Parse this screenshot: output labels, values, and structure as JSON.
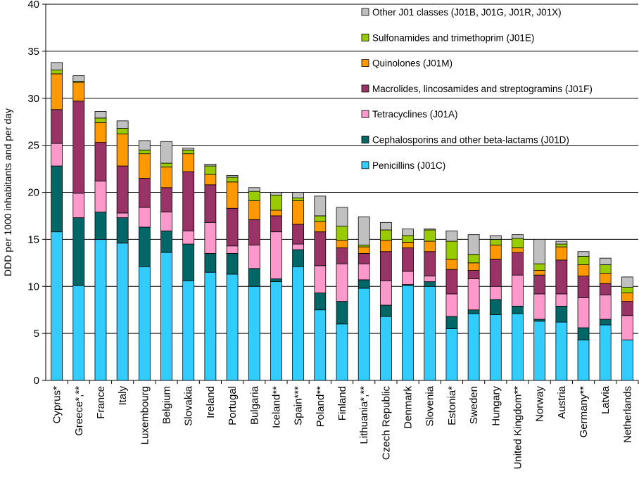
{
  "chart_data": {
    "type": "bar",
    "stacked": true,
    "title": "",
    "xlabel": "",
    "ylabel": "DDD per 1000 inhabitants and per day",
    "ylim": [
      0,
      40
    ],
    "yticks": [
      "0",
      "5",
      "10",
      "15",
      "20",
      "25",
      "30",
      "35",
      "40"
    ],
    "grid": "horizontal",
    "legend_position": "top-right",
    "categories": [
      "Cyprus*",
      "Greece*,**",
      "France",
      "Italy",
      "Luxembourg",
      "Belgium",
      "Slovakia",
      "Ireland",
      "Portugal",
      "Bulgaria",
      "Iceland**",
      "Spain***",
      "Poland**",
      "Finland",
      "Lithuania*,**",
      "Czech Republic",
      "Denmark",
      "Slovenia",
      "Estonia*",
      "Sweden",
      "Hungary",
      "United Kingdom**",
      "Norway",
      "Austria",
      "Germany**",
      "Latvia",
      "Netherlands"
    ],
    "series": [
      {
        "name": "Penicillins (J01C)",
        "color": "#33CCFF",
        "values": [
          15.8,
          10.1,
          15.0,
          14.6,
          12.1,
          13.6,
          10.6,
          11.5,
          11.3,
          10.0,
          10.5,
          12.1,
          7.5,
          6.0,
          9.8,
          6.8,
          10.1,
          10.0,
          5.5,
          7.1,
          7.0,
          7.1,
          6.3,
          6.2,
          4.3,
          5.9,
          4.3
        ]
      },
      {
        "name": "Cephalosporins and other beta-lactams (J01D)",
        "color": "#006666",
        "values": [
          7.0,
          7.2,
          2.9,
          2.7,
          4.2,
          2.3,
          3.9,
          2.0,
          2.2,
          1.9,
          0.3,
          1.8,
          1.8,
          2.4,
          0.9,
          1.2,
          0.1,
          0.5,
          1.3,
          0.4,
          1.6,
          0.8,
          0.2,
          1.7,
          1.3,
          0.6,
          0.0
        ]
      },
      {
        "name": "Tetracyclines (J01A)",
        "color": "#FF99CC",
        "values": [
          2.4,
          2.6,
          3.3,
          0.5,
          2.1,
          2.0,
          1.4,
          3.3,
          0.8,
          2.5,
          5.0,
          0.6,
          2.9,
          4.0,
          1.7,
          2.6,
          1.4,
          0.6,
          2.4,
          3.3,
          1.4,
          3.3,
          2.7,
          1.3,
          3.2,
          2.6,
          2.6
        ]
      },
      {
        "name": "Macrolides, lincosamides and streptogramins (J01F)",
        "color": "#993366",
        "values": [
          3.6,
          9.8,
          4.1,
          5.0,
          3.1,
          2.6,
          6.3,
          4.0,
          4.0,
          2.7,
          1.7,
          2.1,
          3.6,
          1.7,
          1.1,
          3.1,
          2.5,
          2.6,
          2.6,
          0.9,
          2.9,
          2.4,
          2.0,
          3.6,
          2.3,
          1.2,
          1.5
        ]
      },
      {
        "name": "Quinolones (J01M)",
        "color": "#FF9900",
        "values": [
          3.8,
          2.0,
          2.1,
          3.4,
          2.6,
          2.2,
          1.9,
          1.1,
          2.8,
          2.0,
          0.6,
          2.5,
          1.1,
          0.8,
          0.7,
          1.2,
          0.6,
          1.1,
          1.1,
          0.8,
          1.5,
          0.5,
          0.5,
          1.4,
          1.2,
          1.1,
          0.9
        ]
      },
      {
        "name": "Sulfonamides and trimethoprim (J01E)",
        "color": "#99CC00",
        "values": [
          0.4,
          0.1,
          0.5,
          0.6,
          0.4,
          0.4,
          0.4,
          0.9,
          0.5,
          1.0,
          1.6,
          0.3,
          0.6,
          1.5,
          0.2,
          1.1,
          0.7,
          1.2,
          1.9,
          0.9,
          0.6,
          1.0,
          0.7,
          0.3,
          0.9,
          0.9,
          0.6
        ]
      },
      {
        "name": "Other J01 classes (J01B, J01G, J01R, J01X)",
        "color": "#C0C0C0",
        "values": [
          0.8,
          0.6,
          0.7,
          0.8,
          1.0,
          2.3,
          0.2,
          0.2,
          0.2,
          0.4,
          0.3,
          0.6,
          2.1,
          2.0,
          3.0,
          0.8,
          0.7,
          0.1,
          1.1,
          2.1,
          0.4,
          0.4,
          2.6,
          0.3,
          0.5,
          0.7,
          1.1
        ]
      }
    ],
    "legend_order": [
      6,
      5,
      4,
      3,
      2,
      1,
      0
    ]
  }
}
